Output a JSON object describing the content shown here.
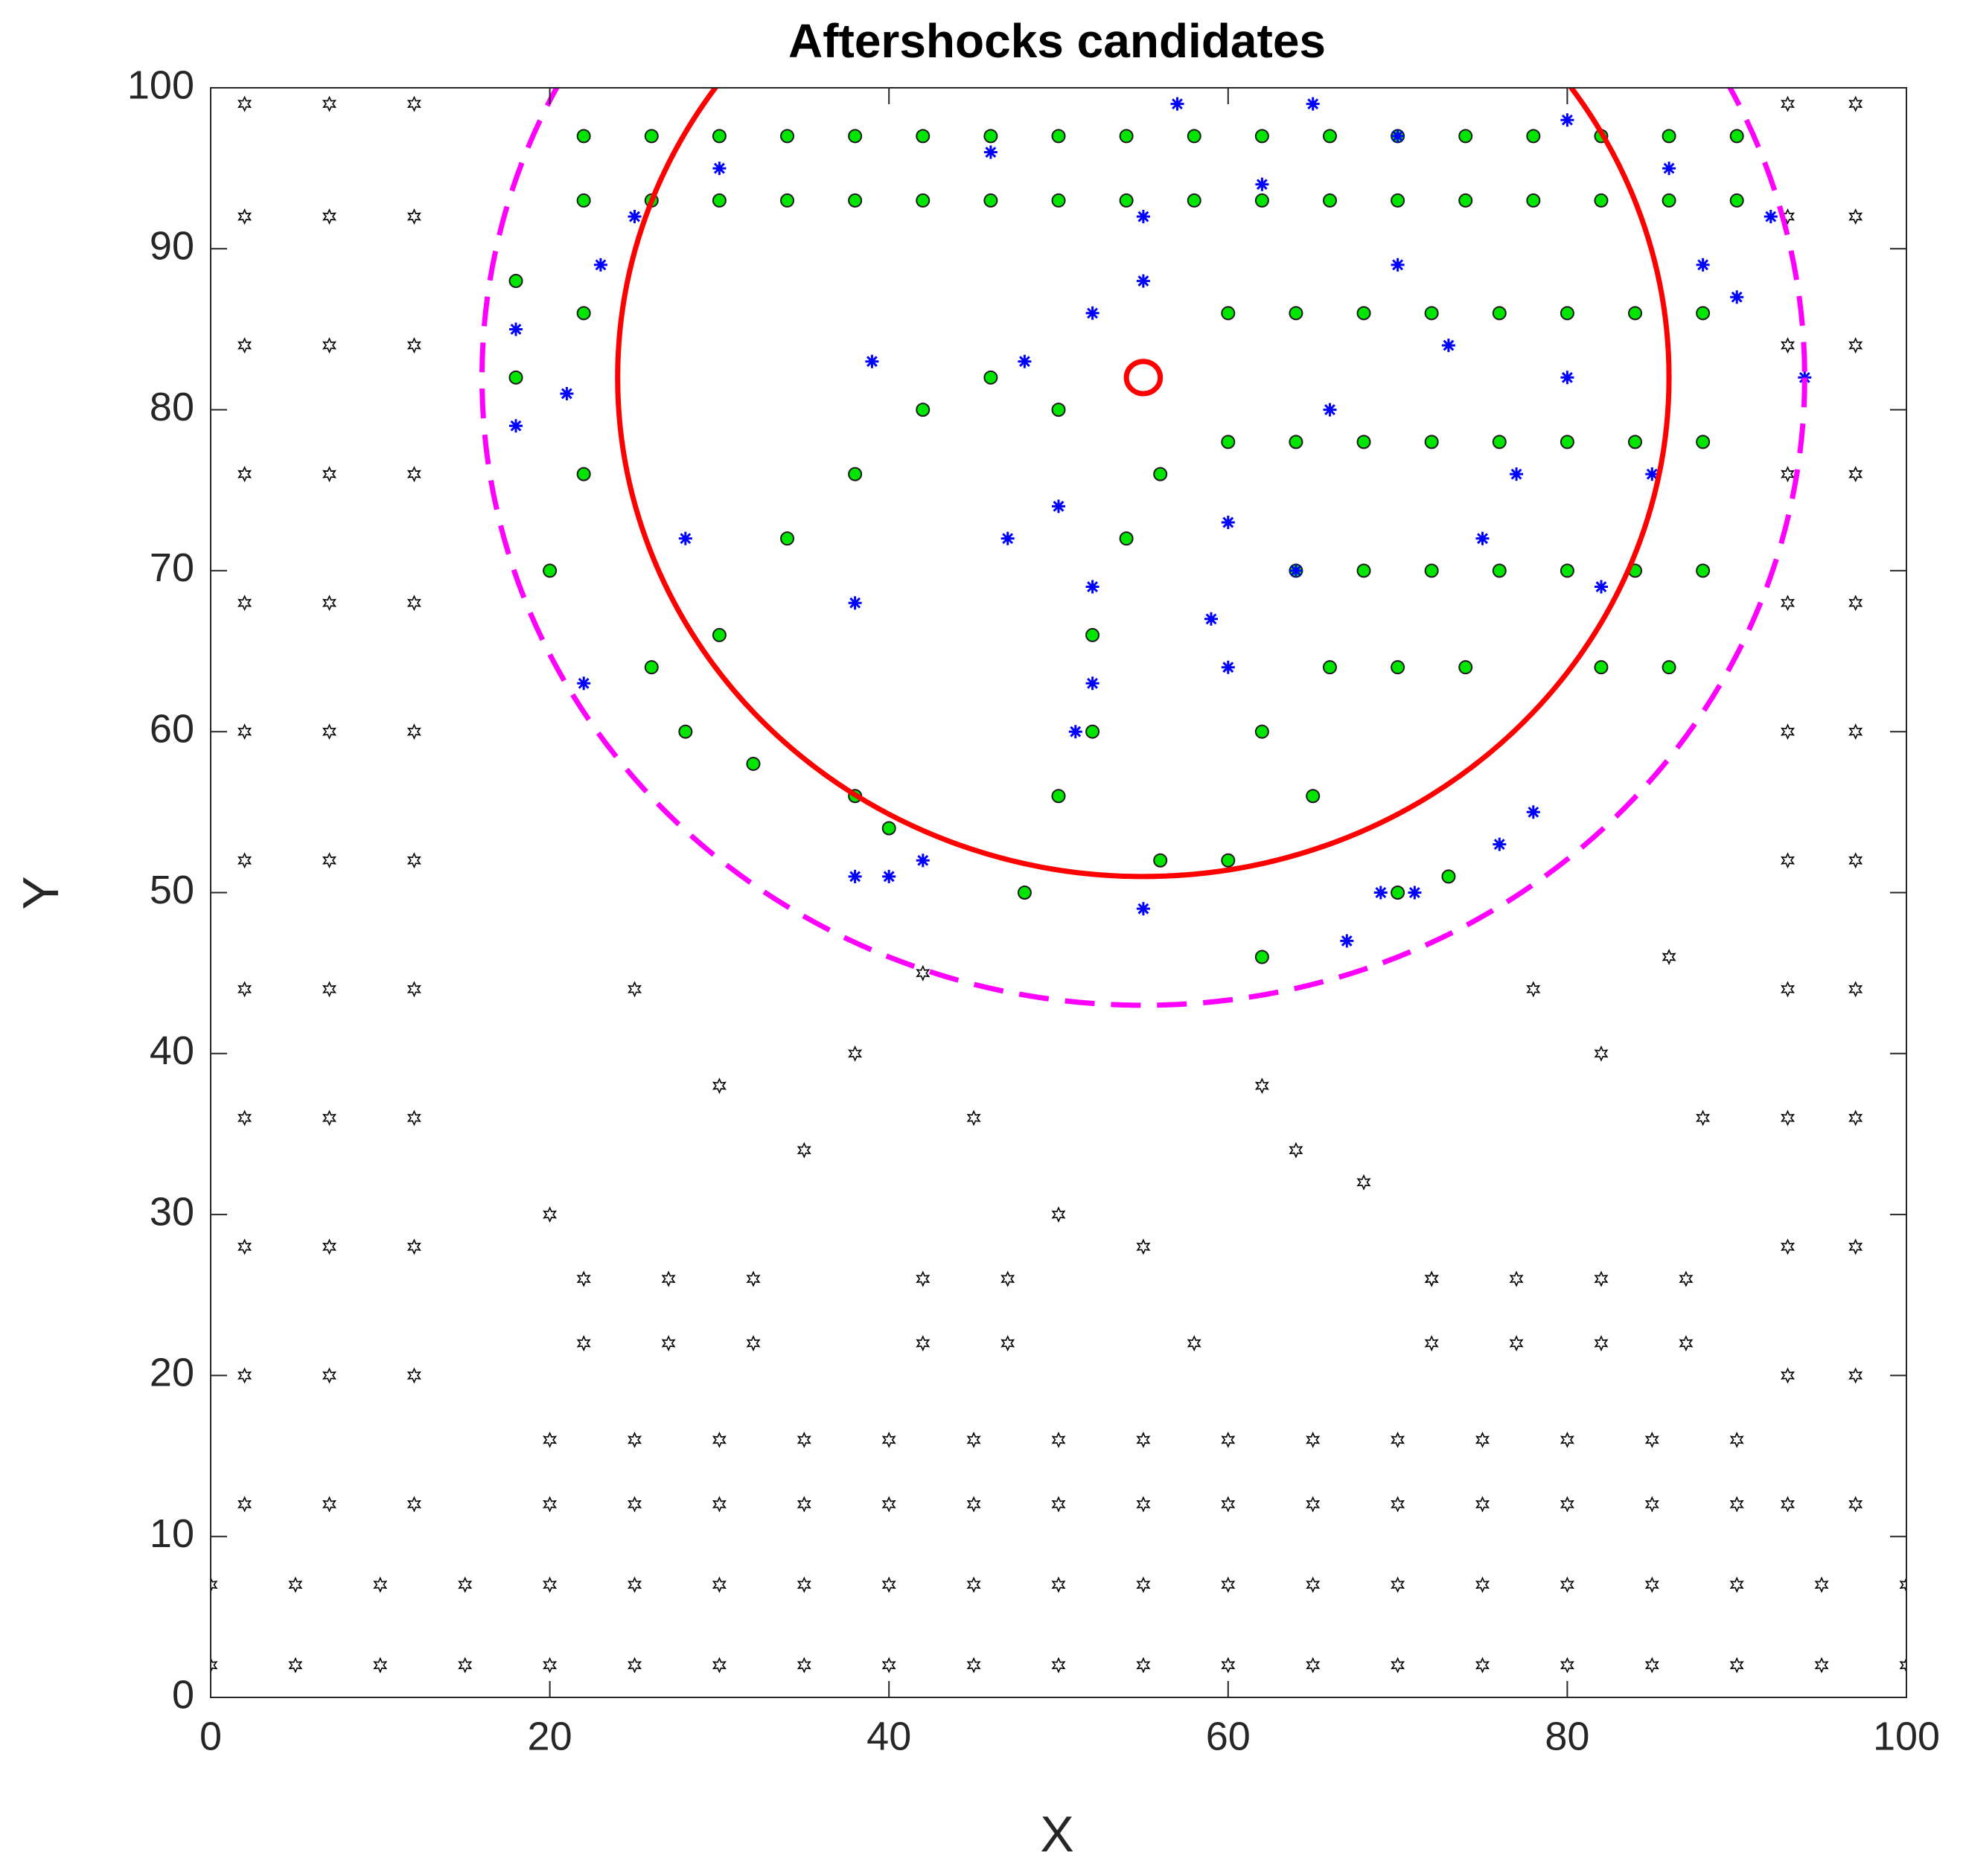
{
  "chart_data": {
    "type": "scatter",
    "title": "Aftershocks candidates",
    "xlabel": "X",
    "ylabel": "Y",
    "xlim": [
      0,
      100
    ],
    "ylim": [
      0,
      100
    ],
    "xticks": [
      0,
      20,
      40,
      60,
      80,
      100
    ],
    "yticks": [
      0,
      10,
      20,
      30,
      40,
      50,
      60,
      70,
      80,
      90,
      100
    ],
    "grid": false,
    "series": [
      {
        "color": "#000000",
        "marker": "star",
        "x": [
          0,
          5,
          10,
          15,
          20,
          25,
          30,
          35,
          40,
          45,
          50,
          55,
          60,
          65,
          70,
          75,
          80,
          85,
          90,
          95,
          100,
          0,
          5,
          10,
          15,
          20,
          25,
          30,
          35,
          40,
          45,
          50,
          55,
          60,
          65,
          70,
          75,
          80,
          85,
          90,
          95,
          100,
          2,
          7,
          12,
          2,
          7,
          12,
          2,
          7,
          12,
          2,
          7,
          12,
          2,
          7,
          12,
          2,
          7,
          12,
          2,
          7,
          12,
          2,
          7,
          12,
          2,
          7,
          12,
          2,
          7,
          12,
          2,
          7,
          12,
          2,
          7,
          12,
          93,
          97,
          93,
          97,
          93,
          97,
          93,
          97,
          93,
          97,
          93,
          97,
          93,
          97,
          93,
          97,
          93,
          97,
          93,
          97,
          93,
          97,
          93,
          97,
          20,
          25,
          30,
          35,
          40,
          45,
          50,
          55,
          60,
          65,
          70,
          75,
          80,
          85,
          90,
          20,
          25,
          30,
          35,
          40,
          45,
          50,
          55,
          60,
          65,
          70,
          75,
          80,
          85,
          90,
          22,
          27,
          32,
          42,
          47,
          72,
          77,
          82,
          87,
          22,
          27,
          32,
          42,
          47,
          72,
          77,
          82,
          87,
          30,
          35,
          45,
          42,
          55,
          58,
          62,
          68,
          72,
          78,
          82,
          86,
          88,
          64,
          50,
          38,
          25,
          20
        ],
        "y": [
          2,
          2,
          2,
          2,
          2,
          2,
          2,
          2,
          2,
          2,
          2,
          2,
          2,
          2,
          2,
          2,
          2,
          2,
          2,
          2,
          2,
          7,
          7,
          7,
          7,
          7,
          7,
          7,
          7,
          7,
          7,
          7,
          7,
          7,
          7,
          7,
          7,
          7,
          7,
          7,
          7,
          7,
          12,
          12,
          12,
          20,
          20,
          20,
          28,
          28,
          28,
          36,
          36,
          36,
          44,
          44,
          44,
          52,
          52,
          52,
          60,
          60,
          60,
          68,
          68,
          68,
          76,
          76,
          76,
          84,
          84,
          84,
          92,
          92,
          92,
          99,
          99,
          99,
          12,
          12,
          20,
          20,
          28,
          28,
          36,
          36,
          44,
          44,
          52,
          52,
          60,
          60,
          68,
          68,
          76,
          76,
          84,
          84,
          92,
          92,
          99,
          99,
          12,
          12,
          12,
          12,
          12,
          12,
          12,
          12,
          12,
          12,
          12,
          12,
          12,
          12,
          12,
          16,
          16,
          16,
          16,
          16,
          16,
          16,
          16,
          16,
          16,
          16,
          16,
          16,
          16,
          16,
          22,
          22,
          22,
          22,
          22,
          22,
          22,
          22,
          22,
          26,
          26,
          26,
          26,
          26,
          26,
          26,
          26,
          26,
          38,
          34,
          36,
          45,
          28,
          22,
          38,
          32,
          26,
          44,
          40,
          46,
          36,
          34,
          30,
          40,
          44,
          30
        ]
      },
      {
        "color": "#00e600",
        "marker": "circle",
        "x": [
          22,
          26,
          30,
          34,
          38,
          42,
          46,
          50,
          54,
          58,
          62,
          66,
          70,
          74,
          78,
          82,
          86,
          90,
          22,
          26,
          30,
          34,
          38,
          42,
          46,
          50,
          54,
          58,
          62,
          66,
          70,
          74,
          78,
          82,
          86,
          90,
          60,
          64,
          68,
          72,
          76,
          80,
          84,
          88,
          60,
          64,
          68,
          72,
          76,
          80,
          84,
          88,
          64,
          68,
          72,
          76,
          80,
          84,
          88,
          66,
          70,
          74,
          82,
          86,
          52,
          52,
          54,
          56,
          50,
          46,
          42,
          38,
          34,
          30,
          28,
          40,
          38,
          50,
          56,
          62,
          65,
          70,
          73,
          20,
          22,
          18,
          22,
          18,
          26,
          32,
          60,
          48,
          62
        ],
        "y": [
          93,
          93,
          93,
          93,
          93,
          93,
          93,
          93,
          93,
          93,
          93,
          93,
          93,
          93,
          93,
          93,
          93,
          93,
          97,
          97,
          97,
          97,
          97,
          97,
          97,
          97,
          97,
          97,
          97,
          97,
          97,
          97,
          97,
          97,
          97,
          97,
          86,
          86,
          86,
          86,
          86,
          86,
          86,
          86,
          78,
          78,
          78,
          78,
          78,
          78,
          78,
          78,
          70,
          70,
          70,
          70,
          70,
          70,
          70,
          64,
          64,
          64,
          64,
          64,
          60,
          66,
          72,
          76,
          80,
          82,
          80,
          76,
          72,
          66,
          60,
          54,
          56,
          56,
          52,
          60,
          56,
          50,
          51,
          70,
          76,
          88,
          86,
          82,
          64,
          58,
          52,
          50,
          46
        ]
      },
      {
        "color": "#0000ff",
        "marker": "asterisk",
        "x": [
          23,
          18,
          21,
          18,
          28,
          22,
          39,
          47,
          38,
          50,
          51,
          52,
          52,
          48,
          52,
          55,
          55,
          59,
          60,
          60,
          64,
          62,
          66,
          70,
          73,
          75,
          77,
          80,
          82,
          85,
          88,
          90,
          94,
          76,
          78,
          67,
          69,
          71,
          55,
          38,
          40,
          42,
          25,
          30,
          46,
          57,
          65,
          70,
          80,
          86,
          92
        ],
        "y": [
          89,
          85,
          81,
          79,
          72,
          63,
          83,
          72,
          68,
          74,
          60,
          63,
          69,
          83,
          86,
          88,
          92,
          67,
          64,
          73,
          70,
          94,
          80,
          89,
          84,
          72,
          76,
          82,
          69,
          76,
          89,
          87,
          82,
          53,
          55,
          47,
          50,
          50,
          49,
          51,
          51,
          52,
          92,
          95,
          96,
          99,
          99,
          97,
          98,
          95,
          92
        ]
      }
    ],
    "circles": [
      {
        "cx": 55,
        "cy": 82,
        "r": 31,
        "color": "#ff0000",
        "dashed": false
      },
      {
        "cx": 55,
        "cy": 82,
        "r": 39,
        "color": "#ff00ff",
        "dashed": true
      },
      {
        "cx": 55,
        "cy": 82,
        "r": 1,
        "color": "#ff0000",
        "dashed": false
      }
    ]
  }
}
